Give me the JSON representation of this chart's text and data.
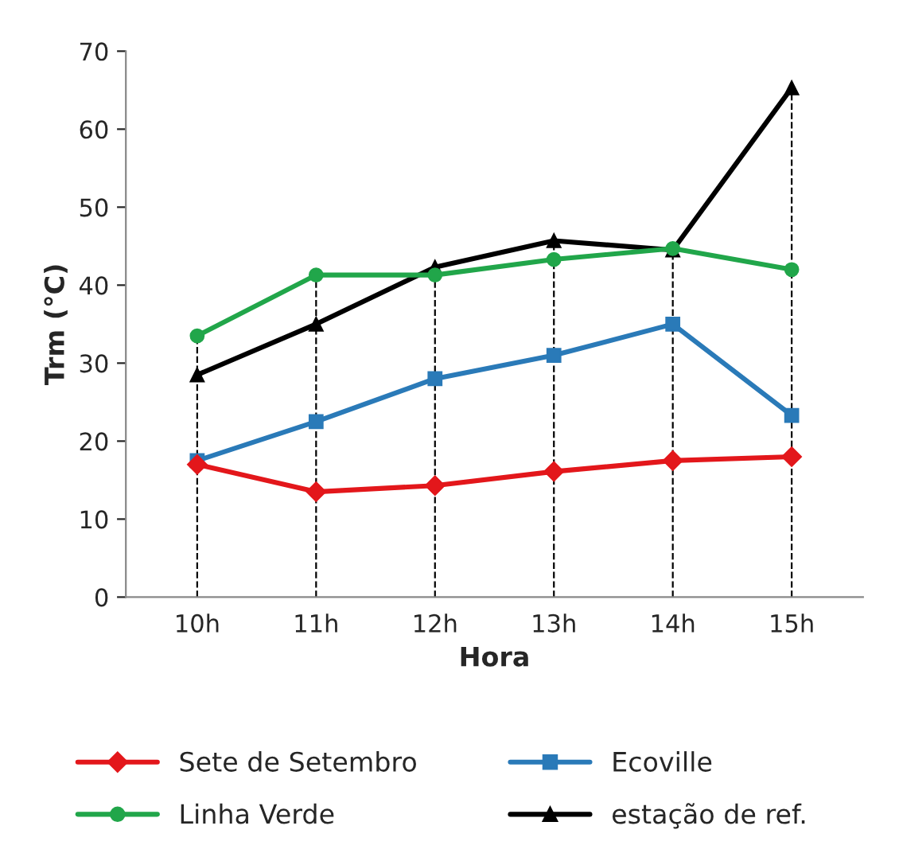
{
  "chart_data": {
    "type": "line",
    "xlabel": "Hora",
    "ylabel": "Trm (°C)",
    "categories": [
      "10h",
      "11h",
      "12h",
      "13h",
      "14h",
      "15h"
    ],
    "series": [
      {
        "name": "Sete de Setembro",
        "color": "#e3171b",
        "marker": "diamond",
        "values": [
          17,
          13.5,
          14.3,
          16.1,
          17.5,
          18
        ]
      },
      {
        "name": "Ecoville",
        "color": "#2a7ab8",
        "marker": "square",
        "values": [
          17.5,
          22.5,
          28,
          31,
          35,
          23.3
        ]
      },
      {
        "name": "Linha Verde",
        "color": "#21a64a",
        "marker": "circle",
        "values": [
          33.5,
          41.3,
          41.3,
          43.3,
          44.7,
          42
        ]
      },
      {
        "name": "estação de ref.",
        "color": "#000000",
        "marker": "triangle",
        "values": [
          28.5,
          35,
          42.3,
          45.7,
          44.5,
          65.3
        ]
      }
    ],
    "ylim": [
      0,
      70
    ],
    "yticks": [
      0,
      10,
      20,
      30,
      40,
      50,
      60,
      70
    ],
    "grid": false,
    "legend": "bottom",
    "ref_lines": [
      {
        "axis": "x",
        "value": "10h",
        "color": "#000000",
        "line_style": "dashed"
      },
      {
        "axis": "x",
        "value": "11h",
        "color": "#000000",
        "line_style": "dashed"
      },
      {
        "axis": "x",
        "value": "12h",
        "color": "#000000",
        "line_style": "dashed"
      },
      {
        "axis": "x",
        "value": "13h",
        "color": "#000000",
        "line_style": "dashed"
      },
      {
        "axis": "x",
        "value": "14h",
        "color": "#000000",
        "line_style": "dashed"
      },
      {
        "axis": "x",
        "value": "15h",
        "color": "#000000",
        "line_style": "dashed"
      }
    ]
  }
}
